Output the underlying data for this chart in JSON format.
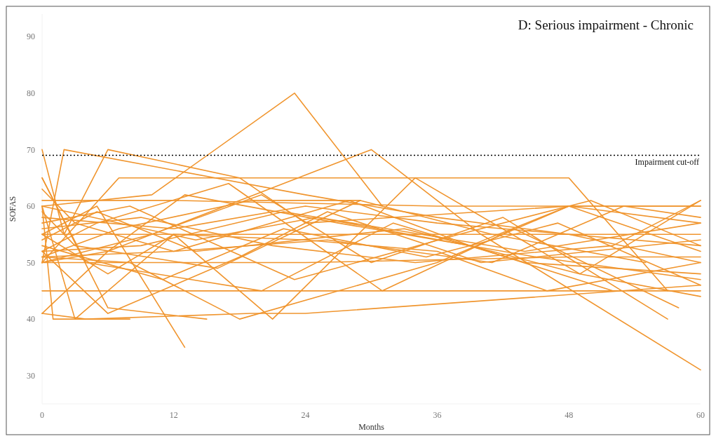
{
  "chart_data": {
    "type": "line",
    "title": "D: Serious impairment - Chronic",
    "xlabel": "Months",
    "ylabel": "SOFAS",
    "xlim": [
      0,
      60
    ],
    "ylim": [
      25,
      94
    ],
    "xticks": [
      0,
      12,
      24,
      36,
      48,
      60
    ],
    "yticks": [
      30,
      40,
      50,
      60,
      70,
      80,
      90
    ],
    "grid": false,
    "marker": "none",
    "line_style": "solid",
    "ref_lines": [
      {
        "axis": "y",
        "value": 69,
        "label": "Impairment cut-off",
        "color": "#000000",
        "line_style": "dotted"
      }
    ],
    "series": [
      {
        "color": "#f0952e",
        "x": [
          0,
          10,
          23,
          31
        ],
        "values": [
          60,
          62,
          80,
          60
        ]
      },
      {
        "color": "#f0952e",
        "x": [
          0,
          6,
          30,
          40,
          60
        ],
        "values": [
          50,
          52,
          70,
          55,
          31
        ]
      },
      {
        "color": "#f0952e",
        "x": [
          0,
          5,
          13
        ],
        "values": [
          55,
          60,
          35
        ]
      },
      {
        "color": "#f0952e",
        "x": [
          0,
          2,
          6,
          18,
          24,
          48,
          60
        ],
        "values": [
          70,
          55,
          70,
          65,
          57,
          60,
          60
        ]
      },
      {
        "color": "#f0952e",
        "x": [
          0,
          1,
          7,
          30,
          60
        ],
        "values": [
          45,
          45,
          45,
          45,
          45
        ]
      },
      {
        "color": "#f0952e",
        "x": [
          0,
          4,
          19,
          24,
          60
        ],
        "values": [
          41,
          40,
          41,
          41,
          46
        ]
      },
      {
        "color": "#f0952e",
        "x": [
          0,
          12,
          36,
          60
        ],
        "values": [
          61,
          61,
          60,
          60
        ]
      },
      {
        "color": "#f0952e",
        "x": [
          0,
          12,
          24,
          48,
          60
        ],
        "values": [
          50,
          50,
          50,
          51,
          51
        ]
      },
      {
        "color": "#f0952e",
        "x": [
          0,
          6,
          24,
          36,
          60
        ],
        "values": [
          55,
          55,
          55,
          55,
          55
        ]
      },
      {
        "color": "#f0952e",
        "x": [
          0,
          1,
          8
        ],
        "values": [
          60,
          40,
          40
        ]
      },
      {
        "color": "#f0952e",
        "x": [
          0,
          6,
          15
        ],
        "values": [
          65,
          42,
          40
        ]
      },
      {
        "color": "#f0952e",
        "x": [
          0,
          8,
          18,
          36,
          48,
          60
        ],
        "values": [
          51,
          50,
          40,
          50,
          60,
          52
        ]
      },
      {
        "color": "#f0952e",
        "x": [
          0,
          3,
          12,
          21,
          34,
          49,
          60
        ],
        "values": [
          60,
          40,
          55,
          40,
          65,
          48,
          61
        ]
      },
      {
        "color": "#f0952e",
        "x": [
          0,
          7,
          12,
          36,
          48,
          57
        ],
        "values": [
          50,
          65,
          65,
          65,
          65,
          45
        ]
      },
      {
        "color": "#f0952e",
        "x": [
          0,
          9,
          22,
          44,
          60
        ],
        "values": [
          52,
          53,
          59,
          52,
          57
        ]
      },
      {
        "color": "#f0952e",
        "x": [
          0,
          12,
          24,
          36,
          48,
          60
        ],
        "values": [
          58,
          56,
          60,
          57,
          55,
          53
        ]
      },
      {
        "color": "#f0952e",
        "x": [
          0,
          2,
          24,
          36,
          48,
          60
        ],
        "values": [
          50,
          70,
          62,
          58,
          55,
          50
        ]
      },
      {
        "color": "#f0952e",
        "x": [
          0,
          6,
          12,
          24,
          36,
          46,
          60
        ],
        "values": [
          55,
          48,
          55,
          54,
          52,
          45,
          50
        ]
      },
      {
        "color": "#f0952e",
        "x": [
          0,
          3,
          12,
          28,
          39,
          52
        ],
        "values": [
          63,
          57,
          52,
          61,
          53,
          45
        ]
      },
      {
        "color": "#f0952e",
        "x": [
          0,
          10,
          20,
          30,
          42,
          57
        ],
        "values": [
          50,
          55,
          62,
          50,
          58,
          40
        ]
      },
      {
        "color": "#f0952e",
        "x": [
          0,
          5,
          14,
          33,
          49,
          60
        ],
        "values": [
          54,
          59,
          52,
          56,
          48,
          44
        ]
      },
      {
        "color": "#f0952e",
        "x": [
          0,
          6,
          18,
          26,
          40,
          60
        ],
        "values": [
          52,
          41,
          51,
          59,
          50,
          54
        ]
      },
      {
        "color": "#f0952e",
        "x": [
          0,
          4,
          20,
          32,
          44,
          60
        ],
        "values": [
          65,
          50,
          45,
          57,
          50,
          48
        ]
      },
      {
        "color": "#f0952e",
        "x": [
          0,
          12,
          26,
          41,
          53,
          60
        ],
        "values": [
          51,
          52,
          54,
          50,
          60,
          58
        ]
      },
      {
        "color": "#f0952e",
        "x": [
          0,
          8,
          23,
          38,
          50,
          60
        ],
        "values": [
          57,
          60,
          47,
          55,
          61,
          53
        ]
      },
      {
        "color": "#f0952e",
        "x": [
          0,
          6,
          13,
          27,
          45,
          60
        ],
        "values": [
          41,
          52,
          62,
          57,
          51,
          47
        ]
      },
      {
        "color": "#f0952e",
        "x": [
          0,
          11,
          22,
          35,
          47,
          60
        ],
        "values": [
          53,
          47,
          56,
          51,
          57,
          46
        ]
      },
      {
        "color": "#f0952e",
        "x": [
          0,
          3,
          16,
          29,
          41,
          55
        ],
        "values": [
          59,
          53,
          49,
          61,
          55,
          50
        ]
      },
      {
        "color": "#f0952e",
        "x": [
          0,
          9,
          21,
          34,
          52,
          60
        ],
        "values": [
          56,
          58,
          53,
          50,
          53,
          61
        ]
      },
      {
        "color": "#f0952e",
        "x": [
          0,
          5,
          17,
          31,
          43,
          58
        ],
        "values": [
          52,
          57,
          64,
          45,
          56,
          42
        ]
      },
      {
        "color": "#f0952e",
        "x": [
          0,
          14,
          25,
          39,
          48,
          60
        ],
        "values": [
          60,
          54,
          58,
          53,
          60,
          57
        ]
      },
      {
        "color": "#f0952e",
        "x": [
          0,
          7,
          19,
          29
        ],
        "values": [
          51,
          56,
          61,
          61
        ]
      }
    ]
  }
}
